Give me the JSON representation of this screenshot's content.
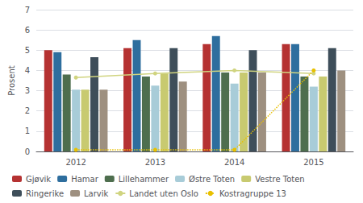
{
  "chart_data": {
    "type": "bar",
    "ylabel": "Prosent",
    "categories": [
      "2012",
      "2013",
      "2014",
      "2015"
    ],
    "series": [
      {
        "name": "Gjøvik",
        "color": "#b53232",
        "values": [
          5.0,
          5.1,
          5.3,
          5.3
        ]
      },
      {
        "name": "Hamar",
        "color": "#2e6e9e",
        "values": [
          4.9,
          5.5,
          5.7,
          5.3
        ]
      },
      {
        "name": "Lillehammer",
        "color": "#4e6e4e",
        "values": [
          3.8,
          3.7,
          3.9,
          3.7
        ]
      },
      {
        "name": "Østre Toten",
        "color": "#a8ccd8",
        "values": [
          3.05,
          3.25,
          3.35,
          3.2
        ]
      },
      {
        "name": "Vestre Toten",
        "color": "#c8ca70",
        "values": [
          3.05,
          3.85,
          3.9,
          3.7
        ]
      },
      {
        "name": "Ringerike",
        "color": "#3e4e5a",
        "values": [
          4.65,
          5.1,
          5.0,
          5.1
        ]
      },
      {
        "name": "Larvik",
        "color": "#9e9080",
        "values": [
          3.05,
          3.45,
          3.9,
          4.0
        ]
      },
      {
        "name": "Landet uten Oslo",
        "type": "line",
        "color": "#d0d480",
        "line_style": "solid",
        "marker": "circle",
        "values": [
          3.65,
          3.85,
          4.0,
          3.85
        ]
      },
      {
        "name": "Kostragruppe 13",
        "type": "line",
        "color": "#e8c000",
        "line_style": "dotted",
        "marker": "circle",
        "values": [
          0.08,
          0.08,
          0.08,
          4.0
        ]
      }
    ],
    "ylim": [
      0,
      7
    ],
    "yticks": [
      0,
      1,
      2,
      3,
      4,
      5,
      6,
      7
    ],
    "grid": true,
    "legend": "bottom"
  }
}
